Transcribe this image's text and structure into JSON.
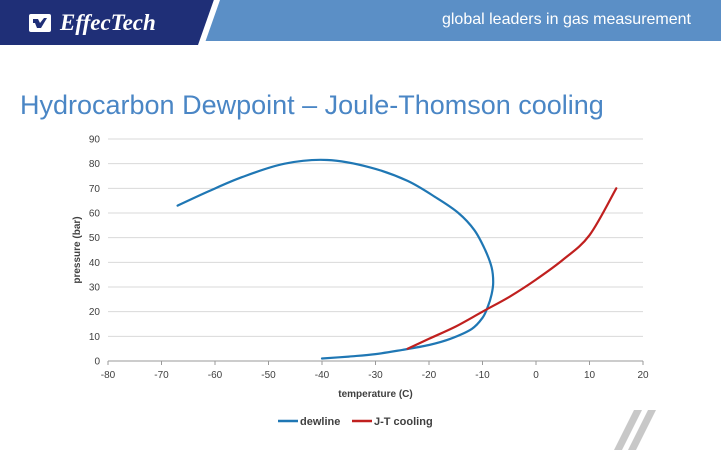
{
  "header": {
    "company": "EffecTech",
    "tagline": "global leaders in gas measurement",
    "logo_icon": "effectech-logo-icon",
    "colors": {
      "logo_bg": "#1f2f77",
      "band": "#5b8fc6"
    }
  },
  "slide": {
    "title": "Hydrocarbon Dewpoint – Joule-Thomson cooling"
  },
  "chart_data": {
    "type": "line",
    "title": "",
    "xlabel": "temperature (C)",
    "ylabel": "pressure (bar)",
    "xlim": [
      -80,
      20
    ],
    "ylim": [
      0,
      90
    ],
    "xticks": [
      -80,
      -70,
      -60,
      -50,
      -40,
      -30,
      -20,
      -10,
      0,
      10,
      20
    ],
    "yticks": [
      0,
      10,
      20,
      30,
      40,
      50,
      60,
      70,
      80,
      90
    ],
    "grid": "horizontal",
    "legend": "bottom",
    "series": [
      {
        "name": "dewline",
        "color": "#1f77b4",
        "points": [
          [
            -40,
            1
          ],
          [
            -35,
            1.8
          ],
          [
            -30,
            2.8
          ],
          [
            -25,
            4.5
          ],
          [
            -20,
            6.5
          ],
          [
            -16,
            9
          ],
          [
            -12,
            13
          ],
          [
            -10,
            17.5
          ],
          [
            -9,
            22
          ],
          [
            -8.3,
            27
          ],
          [
            -8,
            32
          ],
          [
            -8.3,
            38
          ],
          [
            -9.5,
            45
          ],
          [
            -11.5,
            53
          ],
          [
            -14.5,
            60
          ],
          [
            -18.5,
            66
          ],
          [
            -24,
            73
          ],
          [
            -31,
            78.5
          ],
          [
            -39,
            81.5
          ],
          [
            -47,
            80
          ],
          [
            -55,
            74.5
          ],
          [
            -61.5,
            68.5
          ],
          [
            -67,
            63
          ]
        ]
      },
      {
        "name": "J-T cooling",
        "color": "#c0201f",
        "points": [
          [
            -24,
            5
          ],
          [
            -20,
            9
          ],
          [
            -15,
            14
          ],
          [
            -10,
            20
          ],
          [
            -5,
            26
          ],
          [
            0,
            33
          ],
          [
            5,
            41
          ],
          [
            10,
            51
          ],
          [
            15,
            70
          ]
        ]
      }
    ]
  }
}
